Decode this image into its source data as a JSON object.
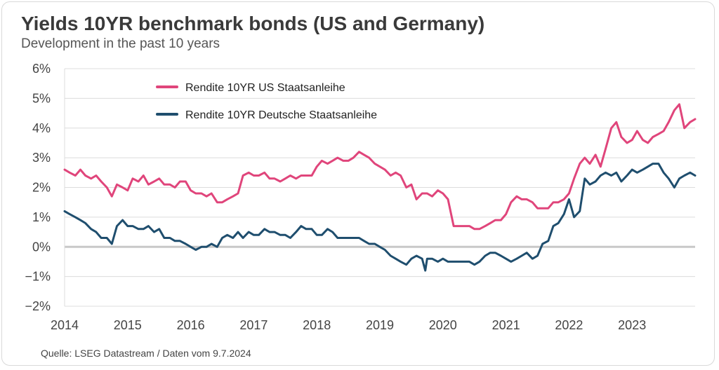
{
  "title": "Yields 10YR benchmark bonds (US and Germany)",
  "subtitle": "Development in the past 10 years",
  "source": "Quelle: LSEG Datastream / Daten vom 9.7.2024",
  "colors": {
    "us": "#e0457b",
    "de": "#1f4e6e",
    "grid": "#dcdcdc",
    "zero": "#c8c8c8"
  },
  "chart_data": {
    "type": "line",
    "title": "Yields 10YR benchmark bonds (US and Germany)",
    "subtitle": "Development in the past 10 years",
    "xlabel": "",
    "ylabel": "",
    "xlim": [
      2014.0,
      2024.0
    ],
    "ylim": [
      -2,
      6
    ],
    "y_ticks": [
      6,
      5,
      4,
      3,
      2,
      1,
      0,
      -1,
      -2
    ],
    "y_tick_labels": [
      "6%",
      "5%",
      "4%",
      "3%",
      "2%",
      "1%",
      "0%",
      "−1%",
      "−2%"
    ],
    "x_ticks": [
      2014,
      2015,
      2016,
      2017,
      2018,
      2019,
      2020,
      2021,
      2022,
      2023
    ],
    "x_tick_labels": [
      "2014",
      "2015",
      "2016",
      "2017",
      "2018",
      "2019",
      "2020",
      "2021",
      "2022",
      "2023"
    ],
    "legend_position": "top-center",
    "grid": true,
    "series": [
      {
        "name": "Rendite 10YR US Staatsanleihe",
        "color": "#e0457b",
        "x": [
          2014.0,
          2014.08,
          2014.17,
          2014.25,
          2014.33,
          2014.42,
          2014.5,
          2014.58,
          2014.67,
          2014.75,
          2014.83,
          2014.92,
          2015.0,
          2015.08,
          2015.17,
          2015.25,
          2015.33,
          2015.42,
          2015.5,
          2015.58,
          2015.67,
          2015.75,
          2015.83,
          2015.92,
          2016.0,
          2016.08,
          2016.17,
          2016.25,
          2016.33,
          2016.42,
          2016.5,
          2016.58,
          2016.67,
          2016.75,
          2016.83,
          2016.92,
          2017.0,
          2017.08,
          2017.17,
          2017.25,
          2017.33,
          2017.42,
          2017.5,
          2017.58,
          2017.67,
          2017.75,
          2017.83,
          2017.92,
          2018.0,
          2018.08,
          2018.17,
          2018.25,
          2018.33,
          2018.42,
          2018.5,
          2018.58,
          2018.67,
          2018.75,
          2018.83,
          2018.92,
          2019.0,
          2019.08,
          2019.17,
          2019.25,
          2019.33,
          2019.42,
          2019.5,
          2019.58,
          2019.67,
          2019.72,
          2019.75,
          2019.83,
          2019.92,
          2020.0,
          2020.08,
          2020.17,
          2020.25,
          2020.33,
          2020.42,
          2020.5,
          2020.58,
          2020.67,
          2020.75,
          2020.83,
          2020.92,
          2021.0,
          2021.08,
          2021.17,
          2021.25,
          2021.33,
          2021.42,
          2021.5,
          2021.58,
          2021.67,
          2021.75,
          2021.83,
          2021.92,
          2022.0,
          2022.08,
          2022.17,
          2022.25,
          2022.33,
          2022.42,
          2022.5,
          2022.58,
          2022.67,
          2022.75,
          2022.83,
          2022.92,
          2023.0,
          2023.08,
          2023.17,
          2023.25,
          2023.33,
          2023.42,
          2023.5,
          2023.58,
          2023.67,
          2023.75,
          2023.83,
          2023.92,
          2024.0
        ],
        "values": [
          2.6,
          2.5,
          2.4,
          2.6,
          2.4,
          2.3,
          2.4,
          2.2,
          2.0,
          1.7,
          2.1,
          2.0,
          1.9,
          2.3,
          2.2,
          2.4,
          2.1,
          2.2,
          2.3,
          2.1,
          2.1,
          2.0,
          2.2,
          2.2,
          1.9,
          1.8,
          1.8,
          1.7,
          1.8,
          1.5,
          1.5,
          1.6,
          1.7,
          1.8,
          2.4,
          2.5,
          2.4,
          2.4,
          2.5,
          2.3,
          2.3,
          2.2,
          2.3,
          2.4,
          2.3,
          2.4,
          2.4,
          2.4,
          2.7,
          2.9,
          2.8,
          2.9,
          3.0,
          2.9,
          2.9,
          3.0,
          3.2,
          3.1,
          3.0,
          2.8,
          2.7,
          2.6,
          2.4,
          2.5,
          2.4,
          2.0,
          2.1,
          1.6,
          1.8,
          1.8,
          1.8,
          1.7,
          1.9,
          1.8,
          1.6,
          0.7,
          0.7,
          0.7,
          0.7,
          0.6,
          0.6,
          0.7,
          0.8,
          0.9,
          0.9,
          1.1,
          1.5,
          1.7,
          1.6,
          1.6,
          1.5,
          1.3,
          1.3,
          1.3,
          1.5,
          1.5,
          1.6,
          1.8,
          2.3,
          2.8,
          3.0,
          2.8,
          3.1,
          2.7,
          3.3,
          4.0,
          4.2,
          3.7,
          3.5,
          3.6,
          3.9,
          3.6,
          3.5,
          3.7,
          3.8,
          3.9,
          4.2,
          4.6,
          4.8,
          4.0,
          4.2,
          4.3
        ]
      },
      {
        "name": "Rendite 10YR Deutsche Staatsanleihe",
        "color": "#1f4e6e",
        "x": [
          2014.0,
          2014.08,
          2014.17,
          2014.25,
          2014.33,
          2014.42,
          2014.5,
          2014.58,
          2014.67,
          2014.75,
          2014.83,
          2014.92,
          2015.0,
          2015.08,
          2015.17,
          2015.25,
          2015.33,
          2015.42,
          2015.5,
          2015.58,
          2015.67,
          2015.75,
          2015.83,
          2015.92,
          2016.0,
          2016.08,
          2016.17,
          2016.25,
          2016.33,
          2016.42,
          2016.5,
          2016.58,
          2016.67,
          2016.75,
          2016.83,
          2016.92,
          2017.0,
          2017.08,
          2017.17,
          2017.25,
          2017.33,
          2017.42,
          2017.5,
          2017.58,
          2017.67,
          2017.75,
          2017.83,
          2017.92,
          2018.0,
          2018.08,
          2018.17,
          2018.25,
          2018.33,
          2018.42,
          2018.5,
          2018.58,
          2018.67,
          2018.75,
          2018.83,
          2018.92,
          2019.0,
          2019.08,
          2019.17,
          2019.25,
          2019.33,
          2019.42,
          2019.5,
          2019.58,
          2019.67,
          2019.72,
          2019.75,
          2019.83,
          2019.92,
          2020.0,
          2020.08,
          2020.17,
          2020.25,
          2020.33,
          2020.42,
          2020.5,
          2020.58,
          2020.67,
          2020.75,
          2020.83,
          2020.92,
          2021.0,
          2021.08,
          2021.17,
          2021.25,
          2021.33,
          2021.42,
          2021.5,
          2021.58,
          2021.67,
          2021.75,
          2021.83,
          2021.92,
          2022.0,
          2022.08,
          2022.17,
          2022.25,
          2022.33,
          2022.42,
          2022.5,
          2022.58,
          2022.67,
          2022.75,
          2022.83,
          2022.92,
          2023.0,
          2023.08,
          2023.17,
          2023.25,
          2023.33,
          2023.42,
          2023.5,
          2023.58,
          2023.67,
          2023.75,
          2023.83,
          2023.92,
          2024.0
        ],
        "values": [
          1.2,
          1.1,
          1.0,
          0.9,
          0.8,
          0.6,
          0.5,
          0.3,
          0.3,
          0.1,
          0.7,
          0.9,
          0.7,
          0.7,
          0.6,
          0.6,
          0.7,
          0.5,
          0.6,
          0.3,
          0.3,
          0.2,
          0.2,
          0.1,
          0.0,
          -0.1,
          0.0,
          0.0,
          0.1,
          0.0,
          0.3,
          0.4,
          0.3,
          0.5,
          0.3,
          0.5,
          0.4,
          0.4,
          0.6,
          0.5,
          0.5,
          0.4,
          0.4,
          0.3,
          0.5,
          0.7,
          0.6,
          0.6,
          0.4,
          0.4,
          0.6,
          0.5,
          0.3,
          0.3,
          0.3,
          0.3,
          0.3,
          0.2,
          0.1,
          0.1,
          0.0,
          -0.1,
          -0.3,
          -0.4,
          -0.5,
          -0.6,
          -0.4,
          -0.3,
          -0.4,
          -0.8,
          -0.4,
          -0.4,
          -0.5,
          -0.4,
          -0.5,
          -0.5,
          -0.5,
          -0.5,
          -0.5,
          -0.6,
          -0.5,
          -0.3,
          -0.2,
          -0.2,
          -0.3,
          -0.4,
          -0.5,
          -0.4,
          -0.3,
          -0.2,
          -0.4,
          -0.3,
          0.1,
          0.2,
          0.7,
          0.8,
          1.1,
          1.6,
          1.0,
          1.2,
          2.3,
          2.1,
          2.2,
          2.4,
          2.5,
          2.4,
          2.5,
          2.2,
          2.4,
          2.6,
          2.5,
          2.6,
          2.7,
          2.8,
          2.8,
          2.5,
          2.3,
          2.0,
          2.3,
          2.4,
          2.5,
          2.4
        ]
      }
    ]
  }
}
